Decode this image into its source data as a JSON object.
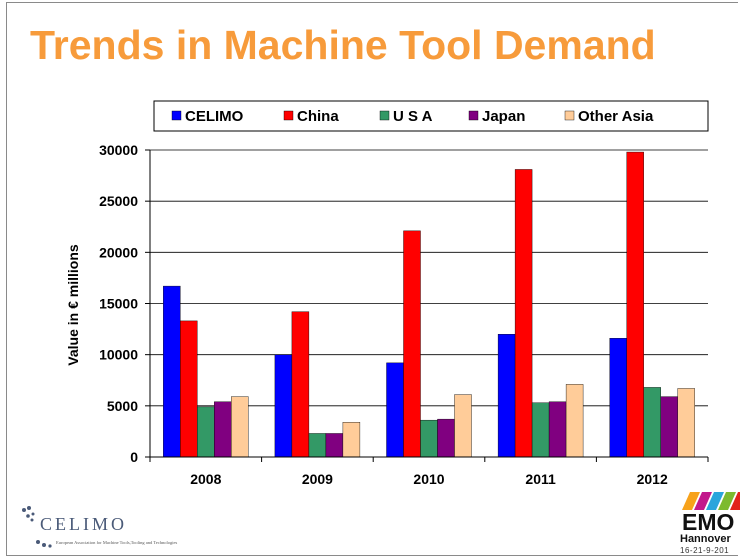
{
  "slide": {
    "title": "Trends in Machine Tool Demand"
  },
  "chart_data": {
    "type": "bar",
    "categories": [
      "2008",
      "2009",
      "2010",
      "2011",
      "2012"
    ],
    "series": [
      {
        "name": "CELIMO",
        "color": "#0000FF",
        "values": [
          16700,
          10000,
          9200,
          12000,
          11600
        ]
      },
      {
        "name": "China",
        "color": "#FF0000",
        "values": [
          13300,
          14200,
          22100,
          28100,
          29800
        ]
      },
      {
        "name": "U S A",
        "color": "#339966",
        "values": [
          4900,
          2300,
          3600,
          5300,
          6800
        ]
      },
      {
        "name": "Japan",
        "color": "#800080",
        "values": [
          5400,
          2300,
          3700,
          5400,
          5900
        ]
      },
      {
        "name": "Other Asia",
        "color": "#FFCC99",
        "values": [
          5900,
          3400,
          6100,
          7100,
          6700
        ]
      }
    ],
    "ylabel": "Value in € millions",
    "xlabel": "",
    "ylim": [
      0,
      30000
    ],
    "yticks": [
      "0",
      "5000",
      "10000",
      "15000",
      "20000",
      "25000",
      "30000"
    ],
    "grid": true,
    "legend_position": "top"
  },
  "logos": {
    "celimo": {
      "name": "CELIMO",
      "subtitle": "European Association for Machine Tools,Tooling and Technologies"
    },
    "emo": {
      "name": "EMO",
      "city": "Hannover",
      "date": "16-21-9-201"
    }
  }
}
